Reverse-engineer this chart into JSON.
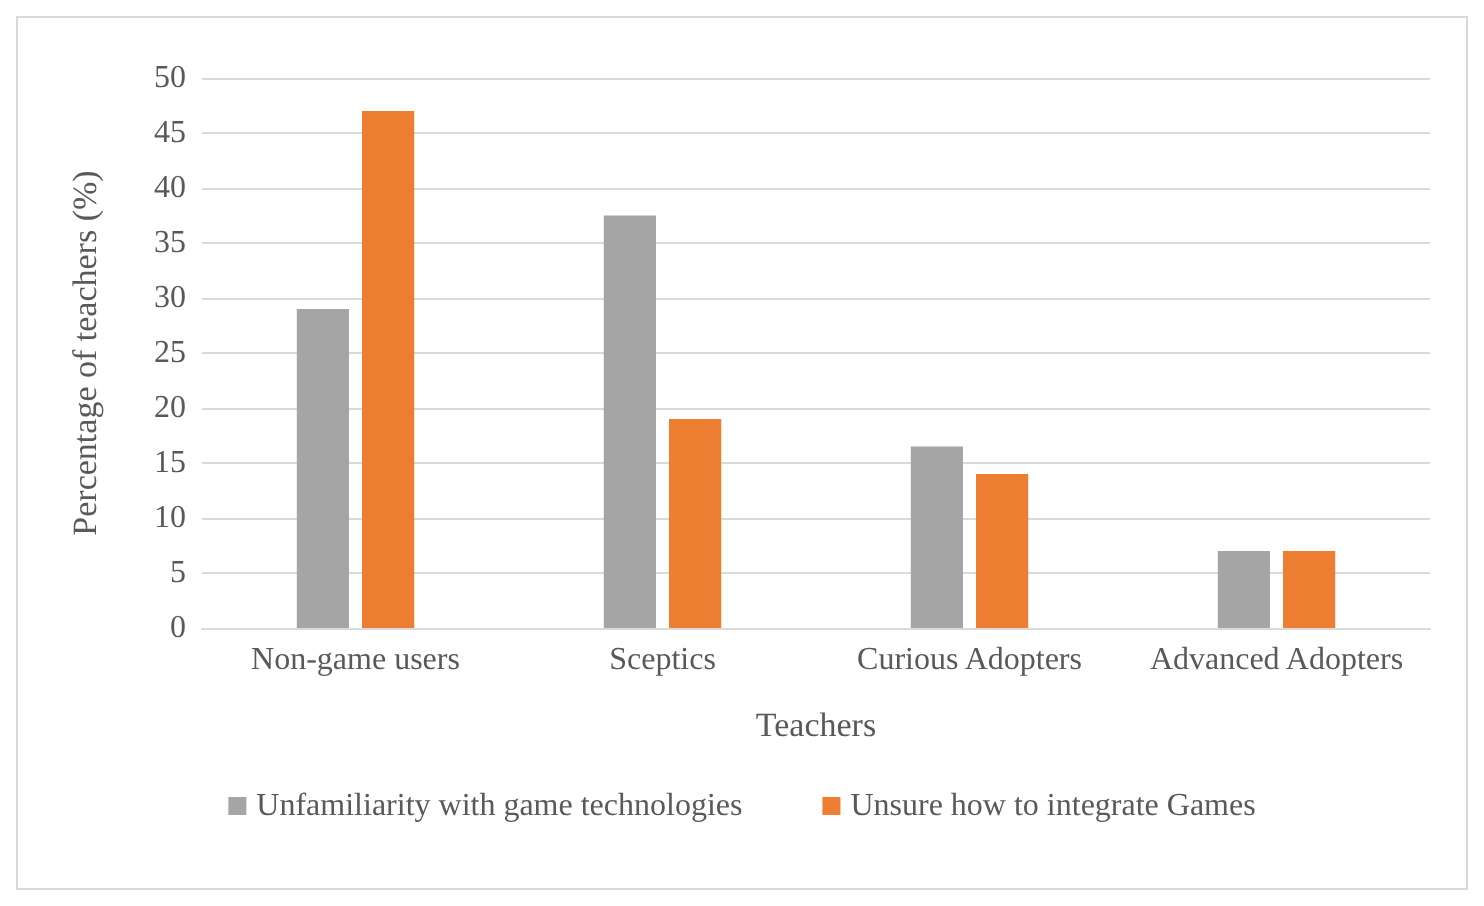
{
  "chart_data": {
    "type": "bar",
    "xlabel": "Teachers",
    "ylabel": "Percentage of teachers (%)",
    "categories": [
      "Non-game users",
      "Sceptics",
      "Curious Adopters",
      "Advanced Adopters"
    ],
    "series": [
      {
        "name": "Unfamiliarity with game technologies",
        "color": "#a5a5a5",
        "values": [
          29,
          37.5,
          16.5,
          7
        ]
      },
      {
        "name": "Unsure how to integrate Games",
        "color": "#ed7d31",
        "values": [
          47,
          19,
          14,
          7
        ]
      }
    ],
    "ylim": [
      0,
      50
    ],
    "yticks": [
      0,
      5,
      10,
      15,
      20,
      25,
      30,
      35,
      40,
      45,
      50
    ],
    "grid": "y",
    "legend": "bottom"
  }
}
